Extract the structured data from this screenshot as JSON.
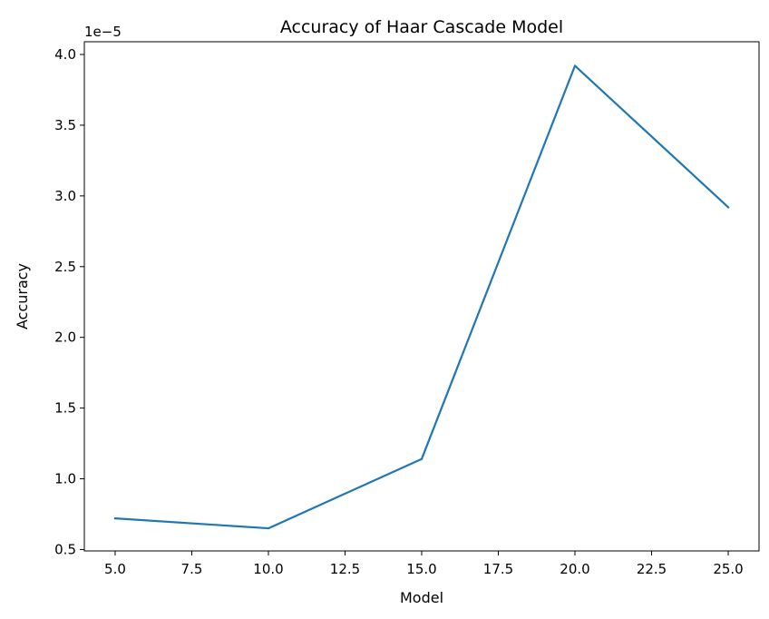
{
  "chart_data": {
    "type": "line",
    "title": "Accuracy of Haar Cascade Model",
    "xlabel": "Model",
    "ylabel": "Accuracy",
    "y_multiplier": "1e−5",
    "x": [
      5,
      10,
      15,
      20,
      25
    ],
    "series": [
      {
        "name": "",
        "color": "#1f77b4",
        "values": [
          7.2e-06,
          6.5e-06,
          1.14e-05,
          3.92e-05,
          2.92e-05
        ]
      }
    ],
    "xlim": [
      3.995,
      26.005
    ],
    "ylim": [
      4.9e-06,
      4.09e-05
    ],
    "xticks": [
      5.0,
      7.5,
      10.0,
      12.5,
      15.0,
      17.5,
      20.0,
      22.5,
      25.0
    ],
    "xtick_labels": [
      "5.0",
      "7.5",
      "10.0",
      "12.5",
      "15.0",
      "17.5",
      "20.0",
      "22.5",
      "25.0"
    ],
    "yticks": [
      5e-06,
      1e-05,
      1.5e-05,
      2e-05,
      2.5e-05,
      3e-05,
      3.5e-05,
      4e-05
    ],
    "ytick_labels": [
      "0.5",
      "1.0",
      "1.5",
      "2.0",
      "2.5",
      "3.0",
      "3.5",
      "4.0"
    ],
    "grid": false,
    "legend": "none"
  }
}
